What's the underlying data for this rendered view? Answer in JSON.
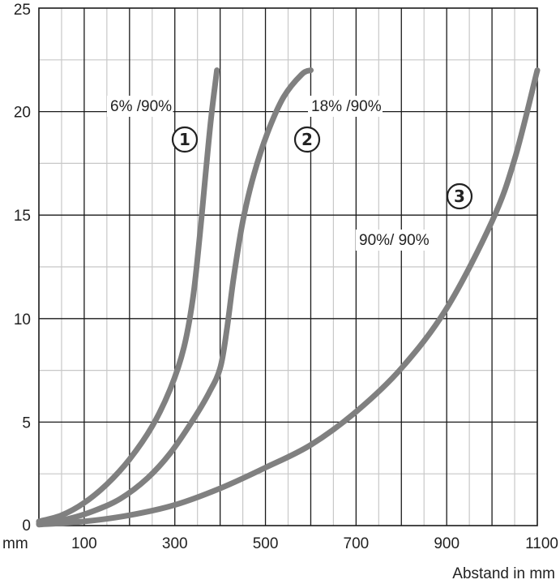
{
  "chart_data": {
    "type": "line",
    "title": "",
    "xlabel": "Abstand in mm",
    "x_unit_label": "mm",
    "ylabel": "",
    "xlim": [
      0,
      1100
    ],
    "ylim": [
      0,
      25
    ],
    "x_tick_labels": [
      {
        "value": 100,
        "label": "100"
      },
      {
        "value": 300,
        "label": "300"
      },
      {
        "value": 500,
        "label": "500"
      },
      {
        "value": 700,
        "label": "700"
      },
      {
        "value": 900,
        "label": "900"
      },
      {
        "value": 1100,
        "label": "1100"
      }
    ],
    "y_ticks": [
      0,
      5,
      10,
      15,
      20,
      25
    ],
    "grid": true,
    "series_color": "#808080",
    "series": [
      {
        "id": "1",
        "marker": "①",
        "label": "6% /90%",
        "points": [
          [
            0,
            0.2
          ],
          [
            50,
            0.5
          ],
          [
            100,
            1.1
          ],
          [
            150,
            2.0
          ],
          [
            200,
            3.2
          ],
          [
            250,
            4.8
          ],
          [
            290,
            6.6
          ],
          [
            320,
            8.6
          ],
          [
            340,
            11.0
          ],
          [
            355,
            14.0
          ],
          [
            368,
            17.0
          ],
          [
            380,
            19.7
          ],
          [
            393,
            22
          ]
        ]
      },
      {
        "id": "2",
        "marker": "②",
        "label": "18% /90%",
        "points": [
          [
            0,
            0.1
          ],
          [
            60,
            0.3
          ],
          [
            120,
            0.7
          ],
          [
            180,
            1.3
          ],
          [
            240,
            2.3
          ],
          [
            290,
            3.5
          ],
          [
            340,
            5.1
          ],
          [
            375,
            6.4
          ],
          [
            400,
            7.6
          ],
          [
            415,
            9.5
          ],
          [
            430,
            12.0
          ],
          [
            450,
            14.7
          ],
          [
            475,
            17.0
          ],
          [
            505,
            19.0
          ],
          [
            540,
            20.7
          ],
          [
            580,
            21.8
          ],
          [
            600,
            22
          ]
        ]
      },
      {
        "id": "3",
        "marker": "③",
        "label": "90%/ 90%",
        "points": [
          [
            0,
            0.05
          ],
          [
            100,
            0.2
          ],
          [
            200,
            0.5
          ],
          [
            300,
            1.0
          ],
          [
            400,
            1.8
          ],
          [
            500,
            2.8
          ],
          [
            600,
            3.9
          ],
          [
            700,
            5.5
          ],
          [
            800,
            7.6
          ],
          [
            900,
            10.5
          ],
          [
            1000,
            14.7
          ],
          [
            1050,
            17.7
          ],
          [
            1100,
            22
          ]
        ]
      }
    ]
  }
}
